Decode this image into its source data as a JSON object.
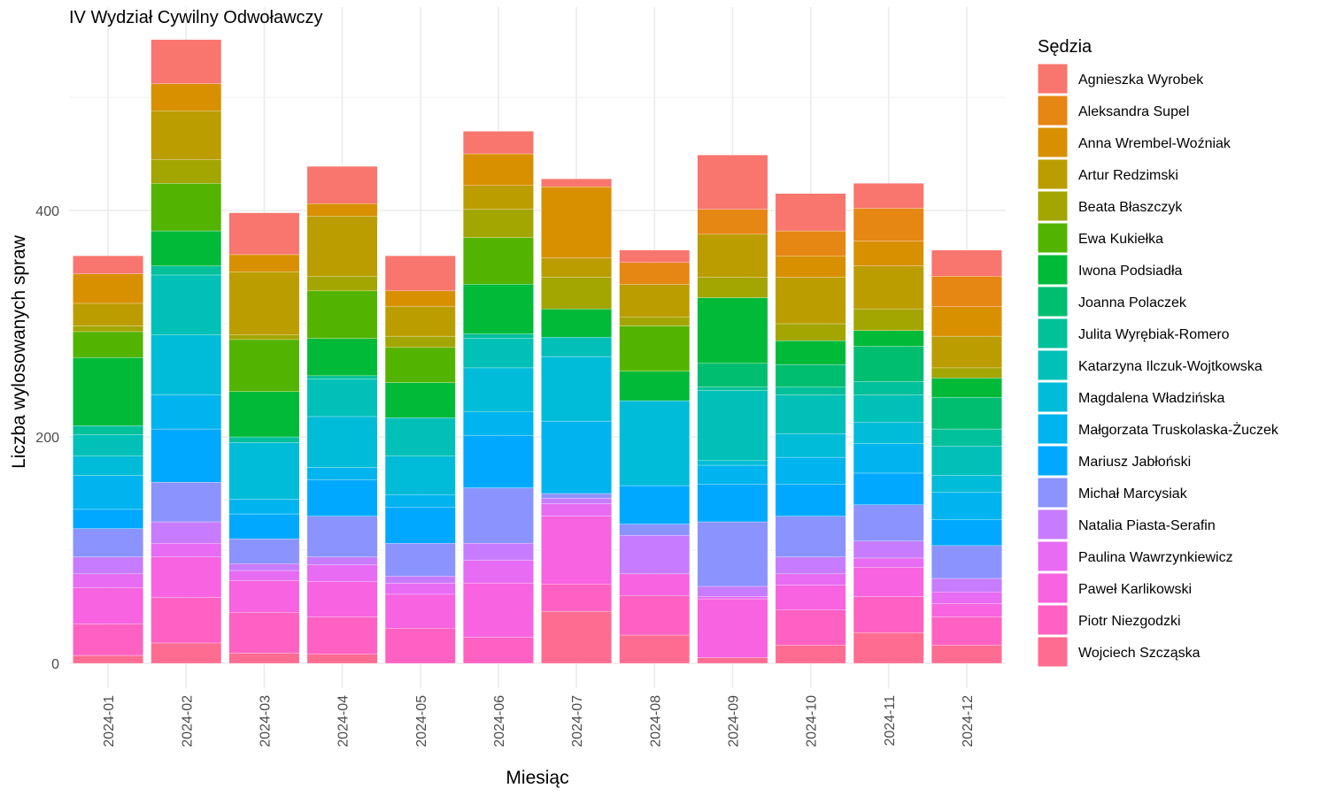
{
  "chart_data": {
    "type": "bar",
    "stacked": true,
    "title": "IV Wydział Cywilny Odwoławczy",
    "xlabel": "Miesiąc",
    "ylabel": "Liczba wylosowanych spraw",
    "legend_title": "Sędzia",
    "legend_position": "right",
    "ylim": [
      0,
      550
    ],
    "yticks": [
      0,
      200,
      400
    ],
    "grid": true,
    "categories": [
      "2024-01",
      "2024-02",
      "2024-03",
      "2024-04",
      "2024-05",
      "2024-06",
      "2024-07",
      "2024-08",
      "2024-09",
      "2024-10",
      "2024-11",
      "2024-12"
    ],
    "series": [
      {
        "name": "Wojciech Szcząska",
        "color": "#FF6C91",
        "values": [
          7,
          18,
          9,
          8,
          0,
          0,
          46,
          25,
          5,
          16,
          27,
          16
        ]
      },
      {
        "name": "Piotr Niezgodzki",
        "color": "#FF61C3",
        "values": [
          28,
          40,
          36,
          33,
          31,
          23,
          24,
          35,
          0,
          31,
          32,
          25
        ]
      },
      {
        "name": "Paweł Karlikowski",
        "color": "#F763E0",
        "values": [
          32,
          36,
          28,
          31,
          30,
          48,
          60,
          19,
          52,
          22,
          26,
          12
        ]
      },
      {
        "name": "Paulina Wawrzynkiewicz",
        "color": "#E76BF3",
        "values": [
          12,
          12,
          9,
          15,
          10,
          20,
          11,
          0,
          2,
          10,
          8,
          10
        ]
      },
      {
        "name": "Natalia Piasta-Serafin",
        "color": "#C77CFF",
        "values": [
          15,
          19,
          6,
          7,
          6,
          15,
          5,
          34,
          9,
          15,
          15,
          12
        ]
      },
      {
        "name": "Michał Marcysiak",
        "color": "#8B93FF",
        "values": [
          25,
          35,
          22,
          36,
          29,
          49,
          4,
          10,
          57,
          36,
          32,
          29
        ]
      },
      {
        "name": "Mariusz Jabłoński",
        "color": "#00A9FF",
        "values": [
          17,
          47,
          22,
          32,
          32,
          46,
          0,
          34,
          33,
          28,
          28,
          23
        ]
      },
      {
        "name": "Małgorzata Truskolaska-Żuczek",
        "color": "#00B4EF",
        "values": [
          30,
          30,
          13,
          11,
          11,
          21,
          64,
          0,
          17,
          24,
          26,
          24
        ]
      },
      {
        "name": "Magdalena Władzińska",
        "color": "#00BCD8",
        "values": [
          17,
          53,
          50,
          45,
          34,
          39,
          57,
          75,
          4,
          21,
          19,
          15
        ]
      },
      {
        "name": "Katarzyna Ilczuk-Wojtkowska",
        "color": "#00C0B8",
        "values": [
          19,
          53,
          0,
          33,
          34,
          26,
          17,
          0,
          62,
          34,
          24,
          26
        ]
      },
      {
        "name": "Julita Wyrębiak-Romero",
        "color": "#00C19A",
        "values": [
          8,
          8,
          5,
          3,
          0,
          4,
          0,
          0,
          3,
          7,
          12,
          15
        ]
      },
      {
        "name": "Joanna Polaczek",
        "color": "#00BE70",
        "values": [
          0,
          0,
          0,
          0,
          0,
          0,
          0,
          0,
          21,
          20,
          31,
          28
        ]
      },
      {
        "name": "Iwona Podsiadła",
        "color": "#00BA38",
        "values": [
          60,
          31,
          40,
          33,
          31,
          44,
          25,
          26,
          58,
          21,
          14,
          17
        ]
      },
      {
        "name": "Ewa Kukiełka",
        "color": "#53B400",
        "values": [
          23,
          42,
          46,
          42,
          31,
          41,
          0,
          40,
          0,
          0,
          0,
          0
        ]
      },
      {
        "name": "Beata Błaszczyk",
        "color": "#A3A500",
        "values": [
          5,
          21,
          4,
          13,
          10,
          25,
          28,
          8,
          18,
          15,
          19,
          9
        ]
      },
      {
        "name": "Artur Redzimski",
        "color": "#BB9D00",
        "values": [
          20,
          43,
          56,
          53,
          26,
          21,
          17,
          29,
          38,
          41,
          38,
          28
        ]
      },
      {
        "name": "Anna Wrembel-Woźniak",
        "color": "#D89000",
        "values": [
          26,
          24,
          15,
          11,
          14,
          28,
          63,
          0,
          0,
          19,
          22,
          26
        ]
      },
      {
        "name": "Aleksandra Supel",
        "color": "#E68613",
        "values": [
          0,
          0,
          0,
          0,
          0,
          0,
          0,
          19,
          22,
          22,
          29,
          27
        ]
      },
      {
        "name": "Agnieszka Wyrobek",
        "color": "#F8766D",
        "values": [
          16,
          39,
          37,
          33,
          31,
          20,
          7,
          11,
          48,
          33,
          22,
          23
        ]
      }
    ]
  }
}
